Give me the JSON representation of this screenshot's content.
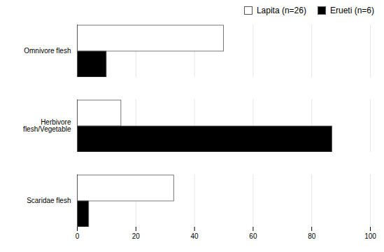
{
  "chart_data": {
    "type": "bar",
    "orientation": "horizontal",
    "categories": [
      "Scaridae flesh",
      "Herbivore\nflesh/Vegetable",
      "Omnivore flesh"
    ],
    "series": [
      {
        "name": "Lapita (n=26)",
        "color": "#ffffff",
        "values": [
          33,
          15,
          50
        ]
      },
      {
        "name": "Erueti (n=6)",
        "color": "#000000",
        "values": [
          4,
          87,
          10
        ]
      }
    ],
    "xlim": [
      0,
      100
    ],
    "xticks": [
      0,
      20,
      40,
      60,
      80,
      100
    ],
    "grid": true,
    "legend": "upper right"
  }
}
